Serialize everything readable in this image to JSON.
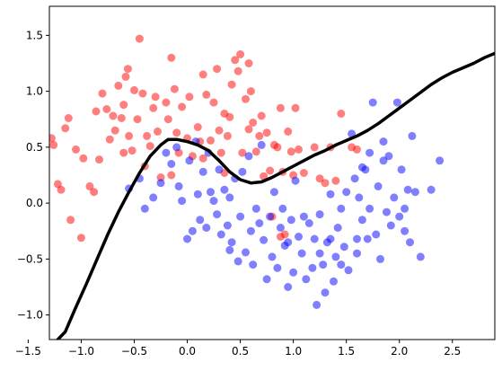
{
  "chart_data": {
    "type": "scatter",
    "title": "",
    "xlabel": "",
    "ylabel": "",
    "xlim": [
      -1.3,
      2.9
    ],
    "ylim": [
      -1.22,
      1.76
    ],
    "x_ticks": [
      "−1.5",
      "−1.0",
      "−0.5",
      "0.0",
      "0.5",
      "1.0",
      "1.5",
      "2.0",
      "2.5"
    ],
    "x_tick_values": [
      -1.5,
      -1.0,
      -0.5,
      0.0,
      0.5,
      1.0,
      1.5,
      2.0,
      2.5
    ],
    "y_ticks": [
      "−1.0",
      "−0.5",
      "0.0",
      "0.5",
      "1.0",
      "1.5"
    ],
    "y_tick_values": [
      -1.0,
      -0.5,
      0.0,
      0.5,
      1.0,
      1.5
    ],
    "grid": false,
    "legend": "none",
    "series": [
      {
        "color": "#ff0000",
        "points": [
          [
            -1.28,
            0.58
          ],
          [
            -1.26,
            0.52
          ],
          [
            -1.22,
            0.17
          ],
          [
            -1.19,
            0.12
          ],
          [
            -1.15,
            0.67
          ],
          [
            -1.12,
            0.76
          ],
          [
            -1.1,
            -0.15
          ],
          [
            -1.05,
            0.48
          ],
          [
            -1.0,
            -0.31
          ],
          [
            -0.98,
            0.4
          ],
          [
            -0.92,
            0.15
          ],
          [
            -0.88,
            0.1
          ],
          [
            -0.86,
            0.82
          ],
          [
            -0.83,
            0.39
          ],
          [
            -0.8,
            0.98
          ],
          [
            -0.76,
            0.84
          ],
          [
            -0.73,
            0.57
          ],
          [
            -0.7,
            0.78
          ],
          [
            -0.68,
            0.65
          ],
          [
            -0.65,
            1.05
          ],
          [
            -0.62,
            0.76
          ],
          [
            -0.6,
            0.88
          ],
          [
            -0.58,
            1.13
          ],
          [
            -0.56,
            1.2
          ],
          [
            -0.55,
            0.6
          ],
          [
            -0.52,
            0.47
          ],
          [
            -0.5,
            1.01
          ],
          [
            -0.47,
            0.75
          ],
          [
            -0.45,
            1.47
          ],
          [
            -0.42,
            0.98
          ],
          [
            -0.38,
            0.6
          ],
          [
            -0.35,
            0.51
          ],
          [
            -0.32,
            0.85
          ],
          [
            -0.28,
            0.64
          ],
          [
            -0.25,
            0.23
          ],
          [
            -0.2,
            0.9
          ],
          [
            -0.18,
            0.75
          ],
          [
            -0.15,
            1.3
          ],
          [
            -0.12,
            1.02
          ],
          [
            -0.1,
            0.63
          ],
          [
            -0.05,
            0.86
          ],
          [
            0.0,
            0.58
          ],
          [
            0.02,
            0.95
          ],
          [
            0.05,
            0.42
          ],
          [
            0.1,
            0.68
          ],
          [
            0.12,
            0.55
          ],
          [
            0.15,
            0.4
          ],
          [
            0.18,
            0.97
          ],
          [
            0.22,
            0.56
          ],
          [
            0.25,
            0.9
          ],
          [
            0.28,
            1.2
          ],
          [
            0.3,
            0.65
          ],
          [
            0.32,
            0.45
          ],
          [
            0.35,
            0.8
          ],
          [
            0.38,
            0.6
          ],
          [
            0.4,
            0.77
          ],
          [
            0.42,
            1.06
          ],
          [
            0.45,
            1.28
          ],
          [
            0.48,
            1.18
          ],
          [
            0.5,
            1.33
          ],
          [
            0.52,
            0.45
          ],
          [
            0.55,
            0.93
          ],
          [
            0.58,
            0.66
          ],
          [
            0.6,
            1.0
          ],
          [
            0.62,
            0.72
          ],
          [
            0.65,
            0.46
          ],
          [
            0.68,
            0.6
          ],
          [
            0.7,
            0.78
          ],
          [
            0.72,
            0.24
          ],
          [
            0.75,
            0.63
          ],
          [
            0.78,
            0.29
          ],
          [
            0.8,
            -0.12
          ],
          [
            0.82,
            0.52
          ],
          [
            0.85,
            0.5
          ],
          [
            0.88,
            0.85
          ],
          [
            0.9,
            0.28
          ],
          [
            0.92,
            -0.28
          ],
          [
            0.95,
            0.64
          ],
          [
            0.98,
            0.46
          ],
          [
            1.0,
            0.25
          ],
          [
            1.02,
            0.85
          ],
          [
            1.05,
            0.48
          ],
          [
            1.1,
            0.27
          ],
          [
            1.2,
            0.5
          ],
          [
            1.25,
            0.22
          ],
          [
            1.3,
            0.18
          ],
          [
            1.35,
            0.5
          ],
          [
            1.4,
            0.2
          ],
          [
            1.45,
            0.8
          ],
          [
            1.55,
            0.5
          ],
          [
            1.6,
            0.48
          ],
          [
            0.88,
            -0.3
          ],
          [
            -0.08,
            0.45
          ],
          [
            0.15,
            1.15
          ],
          [
            -0.6,
            0.45
          ],
          [
            -0.4,
            0.33
          ],
          [
            -0.3,
            0.95
          ],
          [
            -0.15,
            0.25
          ],
          [
            0.58,
            1.25
          ],
          [
            0.35,
            0.27
          ]
        ]
      },
      {
        "color": "#0000ff",
        "points": [
          [
            -0.55,
            0.13
          ],
          [
            -0.45,
            0.22
          ],
          [
            -0.4,
            -0.05
          ],
          [
            -0.32,
            0.05
          ],
          [
            -0.25,
            0.18
          ],
          [
            -0.2,
            0.45
          ],
          [
            -0.15,
            0.35
          ],
          [
            -0.1,
            0.5
          ],
          [
            -0.08,
            0.15
          ],
          [
            -0.05,
            0.02
          ],
          [
            0.0,
            -0.32
          ],
          [
            0.02,
            0.38
          ],
          [
            0.05,
            -0.25
          ],
          [
            0.08,
            0.55
          ],
          [
            0.1,
            0.08
          ],
          [
            0.12,
            -0.15
          ],
          [
            0.15,
            0.28
          ],
          [
            0.18,
            -0.22
          ],
          [
            0.2,
            0.45
          ],
          [
            0.22,
            0.1
          ],
          [
            0.25,
            0.02
          ],
          [
            0.28,
            -0.1
          ],
          [
            0.3,
            0.3
          ],
          [
            0.32,
            -0.28
          ],
          [
            0.35,
            0.12
          ],
          [
            0.38,
            -0.2
          ],
          [
            0.4,
            0.05
          ],
          [
            0.42,
            -0.35
          ],
          [
            0.45,
            0.22
          ],
          [
            0.48,
            -0.52
          ],
          [
            0.5,
            -0.12
          ],
          [
            0.52,
            0.28
          ],
          [
            0.55,
            -0.44
          ],
          [
            0.58,
            0.42
          ],
          [
            0.6,
            -0.25
          ],
          [
            0.62,
            -0.55
          ],
          [
            0.65,
            -0.05
          ],
          [
            0.68,
            -0.18
          ],
          [
            0.7,
            0.52
          ],
          [
            0.72,
            -0.33
          ],
          [
            0.75,
            -0.68
          ],
          [
            0.78,
            -0.12
          ],
          [
            0.8,
            -0.48
          ],
          [
            0.82,
            0.1
          ],
          [
            0.85,
            -0.58
          ],
          [
            0.88,
            -0.22
          ],
          [
            0.9,
            -0.05
          ],
          [
            0.92,
            -0.38
          ],
          [
            0.95,
            -0.75
          ],
          [
            0.98,
            -0.15
          ],
          [
            1.0,
            -0.62
          ],
          [
            1.02,
            0.2
          ],
          [
            1.05,
            -0.3
          ],
          [
            1.08,
            -0.45
          ],
          [
            1.1,
            -0.12
          ],
          [
            1.12,
            -0.68
          ],
          [
            1.15,
            -0.18
          ],
          [
            1.18,
            -0.58
          ],
          [
            1.2,
            -0.32
          ],
          [
            1.22,
            -0.91
          ],
          [
            1.25,
            -0.1
          ],
          [
            1.28,
            -0.55
          ],
          [
            1.3,
            -0.8
          ],
          [
            1.32,
            -0.35
          ],
          [
            1.35,
            0.08
          ],
          [
            1.38,
            -0.7
          ],
          [
            1.4,
            -0.48
          ],
          [
            1.42,
            -0.22
          ],
          [
            1.45,
            -0.05
          ],
          [
            1.48,
            -0.39
          ],
          [
            1.5,
            0.1
          ],
          [
            1.52,
            -0.6
          ],
          [
            1.55,
            0.62
          ],
          [
            1.58,
            0.22
          ],
          [
            1.6,
            -0.45
          ],
          [
            1.62,
            0.05
          ],
          [
            1.65,
            -0.15
          ],
          [
            1.68,
            0.3
          ],
          [
            1.7,
            -0.32
          ],
          [
            1.72,
            -0.05
          ],
          [
            1.75,
            0.9
          ],
          [
            1.78,
            -0.28
          ],
          [
            1.8,
            0.15
          ],
          [
            1.82,
            -0.5
          ],
          [
            1.85,
            0.38
          ],
          [
            1.88,
            -0.08
          ],
          [
            1.9,
            0.42
          ],
          [
            1.92,
            -0.2
          ],
          [
            1.95,
            0.05
          ],
          [
            1.98,
            0.9
          ],
          [
            2.0,
            -0.12
          ],
          [
            2.02,
            0.3
          ],
          [
            2.05,
            -0.25
          ],
          [
            2.08,
            0.12
          ],
          [
            2.1,
            -0.35
          ],
          [
            2.12,
            0.6
          ],
          [
            2.15,
            0.1
          ],
          [
            2.2,
            -0.48
          ],
          [
            2.3,
            0.12
          ],
          [
            2.38,
            0.38
          ],
          [
            1.65,
            0.32
          ],
          [
            1.72,
            0.45
          ],
          [
            1.85,
            0.55
          ],
          [
            1.6,
            -0.32
          ],
          [
            1.45,
            -0.55
          ],
          [
            1.25,
            -0.45
          ],
          [
            0.4,
            -0.42
          ],
          [
            0.95,
            -0.35
          ],
          [
            1.35,
            -0.32
          ],
          [
            2.05,
            -0.05
          ]
        ]
      }
    ],
    "decision_boundary": {
      "color": "#000000",
      "points": [
        [
          -1.22,
          -1.22
        ],
        [
          -1.15,
          -1.15
        ],
        [
          -1.05,
          -0.93
        ],
        [
          -0.95,
          -0.72
        ],
        [
          -0.85,
          -0.5
        ],
        [
          -0.75,
          -0.28
        ],
        [
          -0.65,
          -0.08
        ],
        [
          -0.55,
          0.1
        ],
        [
          -0.45,
          0.27
        ],
        [
          -0.35,
          0.42
        ],
        [
          -0.25,
          0.52
        ],
        [
          -0.18,
          0.57
        ],
        [
          -0.1,
          0.57
        ],
        [
          0.0,
          0.55
        ],
        [
          0.1,
          0.52
        ],
        [
          0.2,
          0.47
        ],
        [
          0.3,
          0.38
        ],
        [
          0.4,
          0.28
        ],
        [
          0.5,
          0.21
        ],
        [
          0.6,
          0.18
        ],
        [
          0.7,
          0.19
        ],
        [
          0.8,
          0.23
        ],
        [
          0.9,
          0.28
        ],
        [
          1.0,
          0.33
        ],
        [
          1.1,
          0.38
        ],
        [
          1.2,
          0.43
        ],
        [
          1.3,
          0.47
        ],
        [
          1.4,
          0.52
        ],
        [
          1.5,
          0.56
        ],
        [
          1.6,
          0.6
        ],
        [
          1.7,
          0.65
        ],
        [
          1.8,
          0.71
        ],
        [
          1.9,
          0.78
        ],
        [
          2.0,
          0.85
        ],
        [
          2.1,
          0.92
        ],
        [
          2.2,
          0.99
        ],
        [
          2.3,
          1.06
        ],
        [
          2.4,
          1.12
        ],
        [
          2.5,
          1.17
        ],
        [
          2.6,
          1.21
        ],
        [
          2.7,
          1.25
        ],
        [
          2.8,
          1.3
        ],
        [
          2.9,
          1.34
        ]
      ]
    }
  }
}
